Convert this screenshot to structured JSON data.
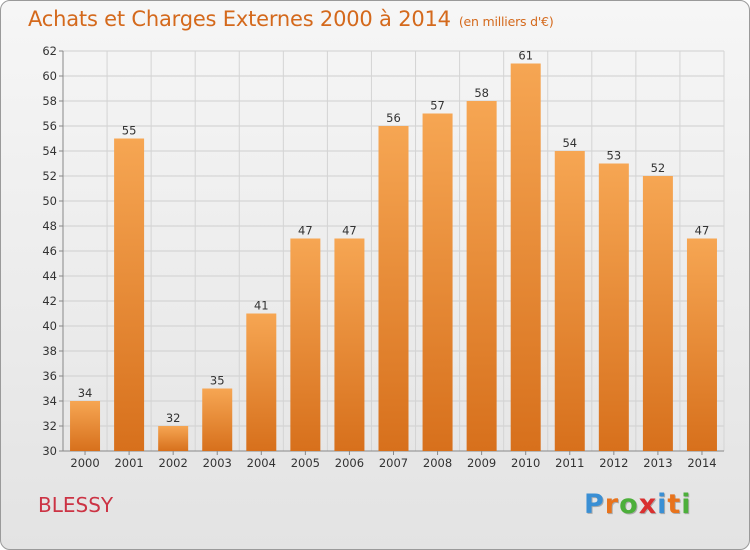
{
  "header": {
    "title": "Achats et Charges Externes 2000 à 2014",
    "subtitle": "(en milliers d'€)"
  },
  "footer": {
    "city": "BLESSY",
    "logo_letters": [
      "P",
      "r",
      "o",
      "x",
      "i",
      "t",
      "i"
    ],
    "logo_colors": [
      "#3a8fd4",
      "#e8731c",
      "#4caf3a",
      "#d93030",
      "#3a8fd4",
      "#e8731c",
      "#4caf3a"
    ]
  },
  "chart_data": {
    "type": "bar",
    "title": "Achats et Charges Externes 2000 à 2014",
    "subtitle": "(en milliers d'€)",
    "xlabel": "",
    "ylabel": "",
    "categories": [
      "2000",
      "2001",
      "2002",
      "2003",
      "2004",
      "2005",
      "2006",
      "2007",
      "2008",
      "2009",
      "2010",
      "2011",
      "2012",
      "2013",
      "2014"
    ],
    "values": [
      34,
      55,
      32,
      35,
      41,
      47,
      47,
      56,
      57,
      58,
      61,
      54,
      53,
      52,
      47
    ],
    "ylim": [
      30,
      62
    ],
    "yticks": [
      30,
      32,
      34,
      36,
      38,
      40,
      42,
      44,
      46,
      48,
      50,
      52,
      54,
      56,
      58,
      60,
      62
    ],
    "grid": true,
    "bar_color_light": "#f6a653",
    "bar_color_dark": "#d7701c"
  }
}
